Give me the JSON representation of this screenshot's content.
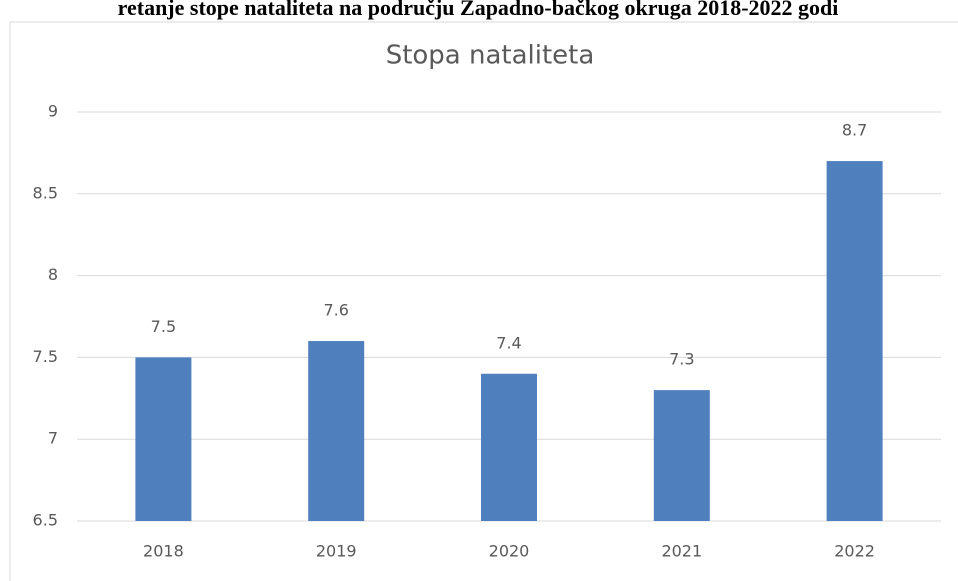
{
  "caption": "retanje stope nataliteta na području Zapadno-bačkog okruga 2018-2022 godi",
  "chart_data": {
    "type": "bar",
    "title": "Stopa nataliteta",
    "categories": [
      "2018",
      "2019",
      "2020",
      "2021",
      "2022"
    ],
    "values": [
      7.5,
      7.6,
      7.4,
      7.3,
      8.7
    ],
    "color": "#4f7fbc",
    "ylim": [
      6.5,
      9
    ],
    "yticks": [
      6.5,
      7,
      7.5,
      8,
      8.5,
      9
    ],
    "grid": true
  }
}
